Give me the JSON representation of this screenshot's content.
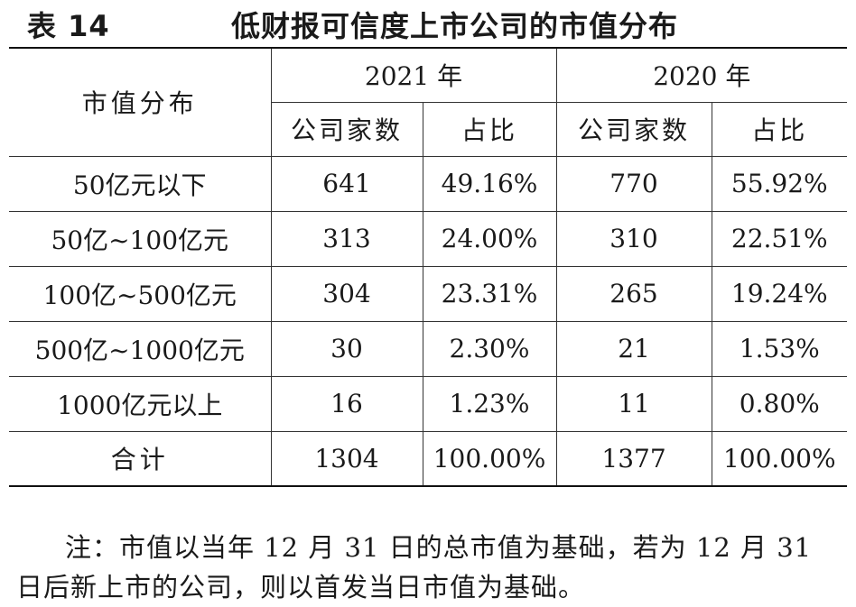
{
  "title": {
    "number": "表 14",
    "text": "低财报可信度上市公司的市值分布"
  },
  "table": {
    "row_header": "市值分布",
    "years": [
      "2021 年",
      "2020 年"
    ],
    "subheaders": [
      "公司家数",
      "占比",
      "公司家数",
      "占比"
    ],
    "rows": [
      {
        "label": "50亿元以下",
        "cells": [
          "641",
          "49.16%",
          "770",
          "55.92%"
        ]
      },
      {
        "label": "50亿~100亿元",
        "cells": [
          "313",
          "24.00%",
          "310",
          "22.51%"
        ]
      },
      {
        "label": "100亿~500亿元",
        "cells": [
          "304",
          "23.31%",
          "265",
          "19.24%"
        ]
      },
      {
        "label": "500亿~1000亿元",
        "cells": [
          "30",
          "2.30%",
          "21",
          "1.53%"
        ]
      },
      {
        "label": "1000亿元以上",
        "cells": [
          "16",
          "1.23%",
          "11",
          "0.80%"
        ]
      },
      {
        "label": "合计",
        "cells": [
          "1304",
          "100.00%",
          "1377",
          "100.00%"
        ]
      }
    ]
  },
  "note": "注：市值以当年 12 月 31 日的总市值为基础，若为 12 月 31 日后新上市的公司，则以首发当日市值为基础。"
}
